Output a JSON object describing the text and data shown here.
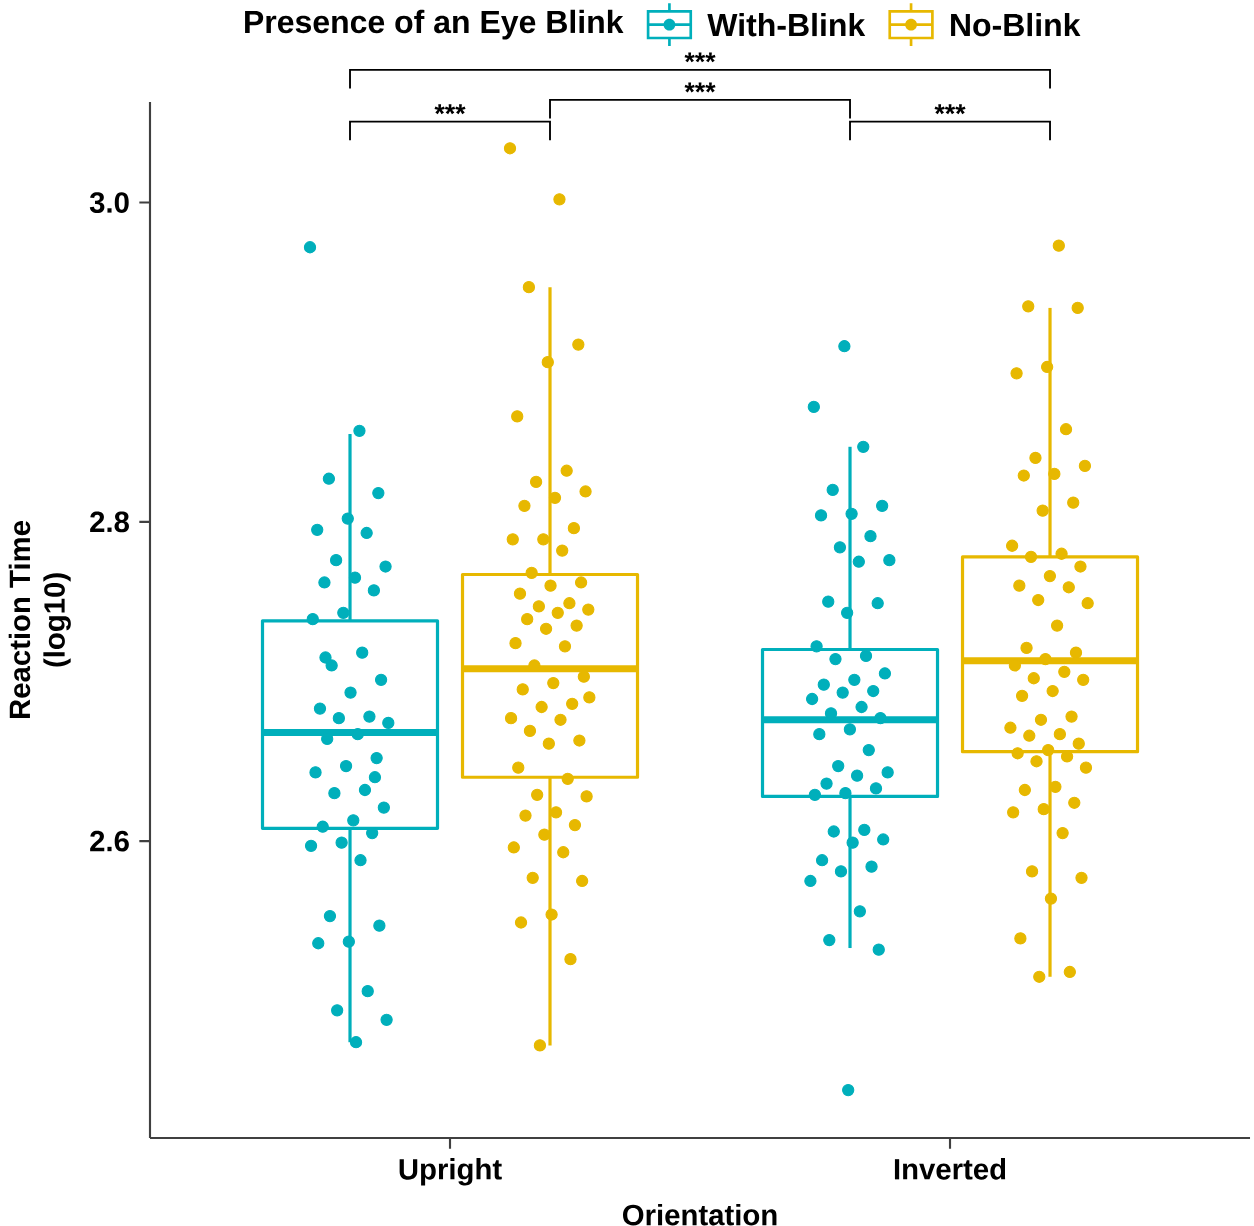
{
  "chart_data": {
    "type": "box",
    "xlabel": "Orientation",
    "ylabel": "Reaction Time (log10)",
    "legend_title": "Presence of an Eye Blink",
    "legend": "top",
    "categories": [
      "Upright",
      "Inverted"
    ],
    "ylim": [
      2.414,
      3.063
    ],
    "yticks": [
      2.6,
      2.8,
      {
        "value": 3.0,
        "label": "3.0"
      }
    ],
    "annotations": [
      "***",
      "***",
      "***",
      "***"
    ],
    "series": [
      {
        "name": "With-Blink",
        "color": "#00AFBB",
        "boxes": [
          {
            "low": 2.474,
            "q1": 2.608,
            "median": 2.668,
            "q3": 2.738,
            "high": 2.855
          },
          {
            "low": 2.533,
            "q1": 2.628,
            "median": 2.676,
            "q3": 2.72,
            "high": 2.847
          }
        ]
      },
      {
        "name": "No-Blink",
        "color": "#E7B800",
        "boxes": [
          {
            "low": 2.472,
            "q1": 2.64,
            "median": 2.708,
            "q3": 2.767,
            "high": 2.947
          },
          {
            "low": 2.515,
            "q1": 2.656,
            "median": 2.713,
            "q3": 2.778,
            "high": 2.934
          }
        ]
      },
      {
        "type": "scatter",
        "color": "#00AFBB",
        "marker": "circle",
        "x": [
          "Upright",
          "Upright",
          "Upright",
          "Upright",
          "Upright",
          "Upright",
          "Upright",
          "Upright",
          "Upright",
          "Upright",
          "Upright",
          "Upright",
          "Upright",
          "Upright",
          "Upright",
          "Upright",
          "Upright",
          "Upright",
          "Upright",
          "Upright",
          "Upright",
          "Upright",
          "Upright",
          "Upright",
          "Upright",
          "Upright",
          "Upright",
          "Upright",
          "Upright",
          "Upright",
          "Upright",
          "Upright",
          "Upright",
          "Upright",
          "Upright",
          "Upright",
          "Upright",
          "Upright",
          "Upright",
          "Upright",
          "Upright",
          "Upright",
          "Upright",
          "Upright",
          "Upright",
          "Upright",
          "Inverted",
          "Inverted",
          "Inverted",
          "Inverted",
          "Inverted",
          "Inverted",
          "Inverted",
          "Inverted",
          "Inverted",
          "Inverted",
          "Inverted",
          "Inverted",
          "Inverted",
          "Inverted",
          "Inverted",
          "Inverted",
          "Inverted",
          "Inverted",
          "Inverted",
          "Inverted",
          "Inverted",
          "Inverted",
          "Inverted",
          "Inverted",
          "Inverted",
          "Inverted",
          "Inverted",
          "Inverted",
          "Inverted",
          "Inverted",
          "Inverted",
          "Inverted",
          "Inverted",
          "Inverted",
          "Inverted",
          "Inverted",
          "Inverted",
          "Inverted",
          "Inverted",
          "Inverted",
          "Inverted",
          "Inverted",
          "Inverted",
          "Inverted",
          "Inverted",
          "Inverted",
          "Inverted",
          "Inverted"
        ],
        "values": [
          2.972,
          2.857,
          2.827,
          2.818,
          2.802,
          2.795,
          2.793,
          2.776,
          2.772,
          2.765,
          2.762,
          2.757,
          2.743,
          2.739,
          2.718,
          2.71,
          2.701,
          2.693,
          2.683,
          2.678,
          2.677,
          2.674,
          2.667,
          2.664,
          2.652,
          2.647,
          2.643,
          2.632,
          2.63,
          2.621,
          2.613,
          2.609,
          2.605,
          2.599,
          2.597,
          2.588,
          2.553,
          2.547,
          2.537,
          2.536,
          2.506,
          2.494,
          2.488,
          2.474,
          2.715,
          2.64,
          2.91,
          2.872,
          2.847,
          2.82,
          2.81,
          2.805,
          2.804,
          2.791,
          2.784,
          2.776,
          2.775,
          2.75,
          2.749,
          2.743,
          2.722,
          2.716,
          2.714,
          2.705,
          2.701,
          2.698,
          2.694,
          2.693,
          2.689,
          2.684,
          2.68,
          2.677,
          2.67,
          2.667,
          2.657,
          2.647,
          2.643,
          2.641,
          2.636,
          2.633,
          2.63,
          2.629,
          2.607,
          2.606,
          2.601,
          2.599,
          2.588,
          2.584,
          2.581,
          2.575,
          2.556,
          2.538,
          2.532,
          2.444
        ]
      },
      {
        "type": "scatter",
        "color": "#E7B800",
        "marker": "circle",
        "x": [
          "Upright",
          "Upright",
          "Upright",
          "Upright",
          "Upright",
          "Upright",
          "Upright",
          "Upright",
          "Upright",
          "Upright",
          "Upright",
          "Upright",
          "Upright",
          "Upright",
          "Upright",
          "Upright",
          "Upright",
          "Upright",
          "Upright",
          "Upright",
          "Upright",
          "Upright",
          "Upright",
          "Upright",
          "Upright",
          "Upright",
          "Upright",
          "Upright",
          "Upright",
          "Upright",
          "Upright",
          "Upright",
          "Upright",
          "Upright",
          "Upright",
          "Upright",
          "Upright",
          "Upright",
          "Upright",
          "Upright",
          "Upright",
          "Upright",
          "Upright",
          "Upright",
          "Upright",
          "Upright",
          "Upright",
          "Upright",
          "Upright",
          "Upright",
          "Upright",
          "Upright",
          "Upright",
          "Upright",
          "Upright",
          "Upright",
          "Inverted",
          "Inverted",
          "Inverted",
          "Inverted",
          "Inverted",
          "Inverted",
          "Inverted",
          "Inverted",
          "Inverted",
          "Inverted",
          "Inverted",
          "Inverted",
          "Inverted",
          "Inverted",
          "Inverted",
          "Inverted",
          "Inverted",
          "Inverted",
          "Inverted",
          "Inverted",
          "Inverted",
          "Inverted",
          "Inverted",
          "Inverted",
          "Inverted",
          "Inverted",
          "Inverted",
          "Inverted",
          "Inverted",
          "Inverted",
          "Inverted",
          "Inverted",
          "Inverted",
          "Inverted",
          "Inverted",
          "Inverted",
          "Inverted",
          "Inverted",
          "Inverted",
          "Inverted",
          "Inverted",
          "Inverted",
          "Inverted",
          "Inverted",
          "Inverted",
          "Inverted",
          "Inverted",
          "Inverted",
          "Inverted",
          "Inverted",
          "Inverted",
          "Inverted",
          "Inverted",
          "Inverted"
        ],
        "values": [
          3.034,
          3.002,
          2.947,
          2.911,
          2.9,
          2.866,
          2.832,
          2.825,
          2.819,
          2.815,
          2.81,
          2.796,
          2.789,
          2.789,
          2.782,
          2.768,
          2.762,
          2.76,
          2.755,
          2.749,
          2.747,
          2.745,
          2.743,
          2.739,
          2.735,
          2.733,
          2.724,
          2.722,
          2.71,
          2.703,
          2.699,
          2.695,
          2.686,
          2.684,
          2.677,
          2.676,
          2.669,
          2.663,
          2.661,
          2.646,
          2.639,
          2.629,
          2.628,
          2.618,
          2.616,
          2.61,
          2.604,
          2.596,
          2.593,
          2.577,
          2.575,
          2.554,
          2.549,
          2.526,
          2.472,
          2.69,
          2.973,
          2.935,
          2.934,
          2.897,
          2.893,
          2.858,
          2.84,
          2.835,
          2.83,
          2.829,
          2.812,
          2.807,
          2.785,
          2.78,
          2.778,
          2.772,
          2.766,
          2.76,
          2.759,
          2.751,
          2.749,
          2.735,
          2.721,
          2.718,
          2.714,
          2.71,
          2.706,
          2.702,
          2.701,
          2.694,
          2.691,
          2.678,
          2.676,
          2.671,
          2.667,
          2.666,
          2.661,
          2.657,
          2.655,
          2.653,
          2.65,
          2.646,
          2.634,
          2.632,
          2.624,
          2.62,
          2.618,
          2.605,
          2.581,
          2.577,
          2.564,
          2.539,
          2.518,
          2.515
        ]
      }
    ]
  }
}
